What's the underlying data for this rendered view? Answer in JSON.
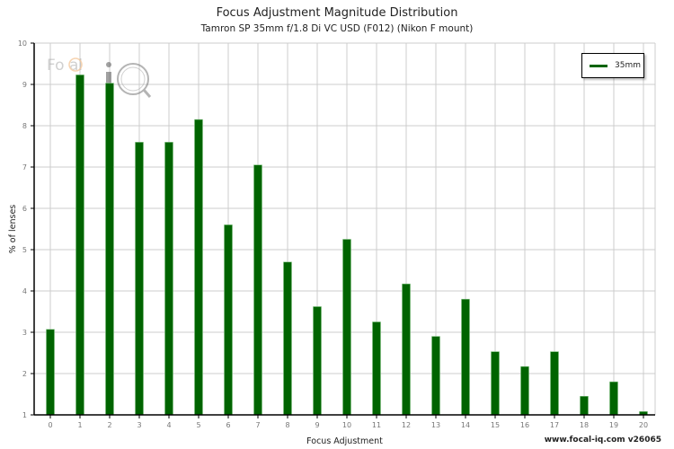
{
  "chart_data": {
    "type": "bar",
    "title": "Focus Adjustment Magnitude Distribution",
    "subtitle": "Tamron SP 35mm f/1.8 Di VC USD (F012) (Nikon F mount)",
    "xlabel": "Focus Adjustment",
    "ylabel": "% of lenses",
    "ylim": [
      1,
      10
    ],
    "yticks": [
      1,
      2,
      3,
      4,
      5,
      6,
      7,
      8,
      9,
      10
    ],
    "categories": [
      "0",
      "1",
      "2",
      "3",
      "4",
      "5",
      "6",
      "7",
      "8",
      "9",
      "10",
      "11",
      "12",
      "13",
      "14",
      "15",
      "16",
      "17",
      "18",
      "19",
      "20"
    ],
    "series": [
      {
        "name": "35mm",
        "color": "#006400",
        "values": [
          3.07,
          9.23,
          9.03,
          7.6,
          7.6,
          8.15,
          5.6,
          7.05,
          4.7,
          3.62,
          5.25,
          3.25,
          4.17,
          2.9,
          3.8,
          2.53,
          2.17,
          2.53,
          1.45,
          1.8,
          1.08
        ]
      }
    ],
    "grid": true,
    "legend_position": "top-right"
  },
  "footer": "www.focal-iq.com  v26065",
  "watermark": "FoCal iQ"
}
